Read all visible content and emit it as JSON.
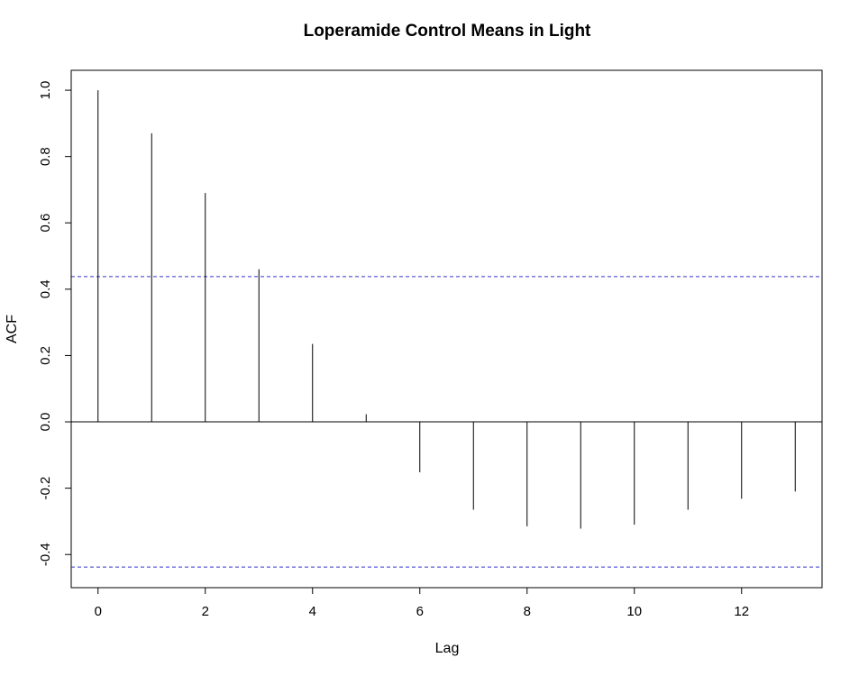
{
  "chart_data": {
    "type": "bar",
    "title": "Loperamide Control Means in Light",
    "xlabel": "Lag",
    "ylabel": "ACF",
    "x": [
      0,
      1,
      2,
      3,
      4,
      5,
      6,
      7,
      8,
      9,
      10,
      11,
      12,
      13
    ],
    "values": [
      1.0,
      0.87,
      0.69,
      0.46,
      0.235,
      0.023,
      -0.152,
      -0.265,
      -0.315,
      -0.322,
      -0.31,
      -0.265,
      -0.232,
      -0.21
    ],
    "xlim": [
      -0.5,
      13.5
    ],
    "ylim": [
      -0.5,
      1.06
    ],
    "x_ticks": [
      0,
      2,
      4,
      6,
      8,
      10,
      12
    ],
    "y_ticks": [
      -0.4,
      -0.2,
      0.0,
      0.2,
      0.4,
      0.6,
      0.8,
      1.0
    ],
    "y_tick_labels": [
      "-0.4",
      "-0.2",
      "0.0",
      "0.2",
      "0.4",
      "0.6",
      "0.8",
      "1.0"
    ],
    "confidence_bound": 0.438,
    "zero_line": true,
    "grid": false,
    "colors": {
      "bars": "#000000",
      "confidence": "#3333cc",
      "axis": "#000000"
    }
  }
}
